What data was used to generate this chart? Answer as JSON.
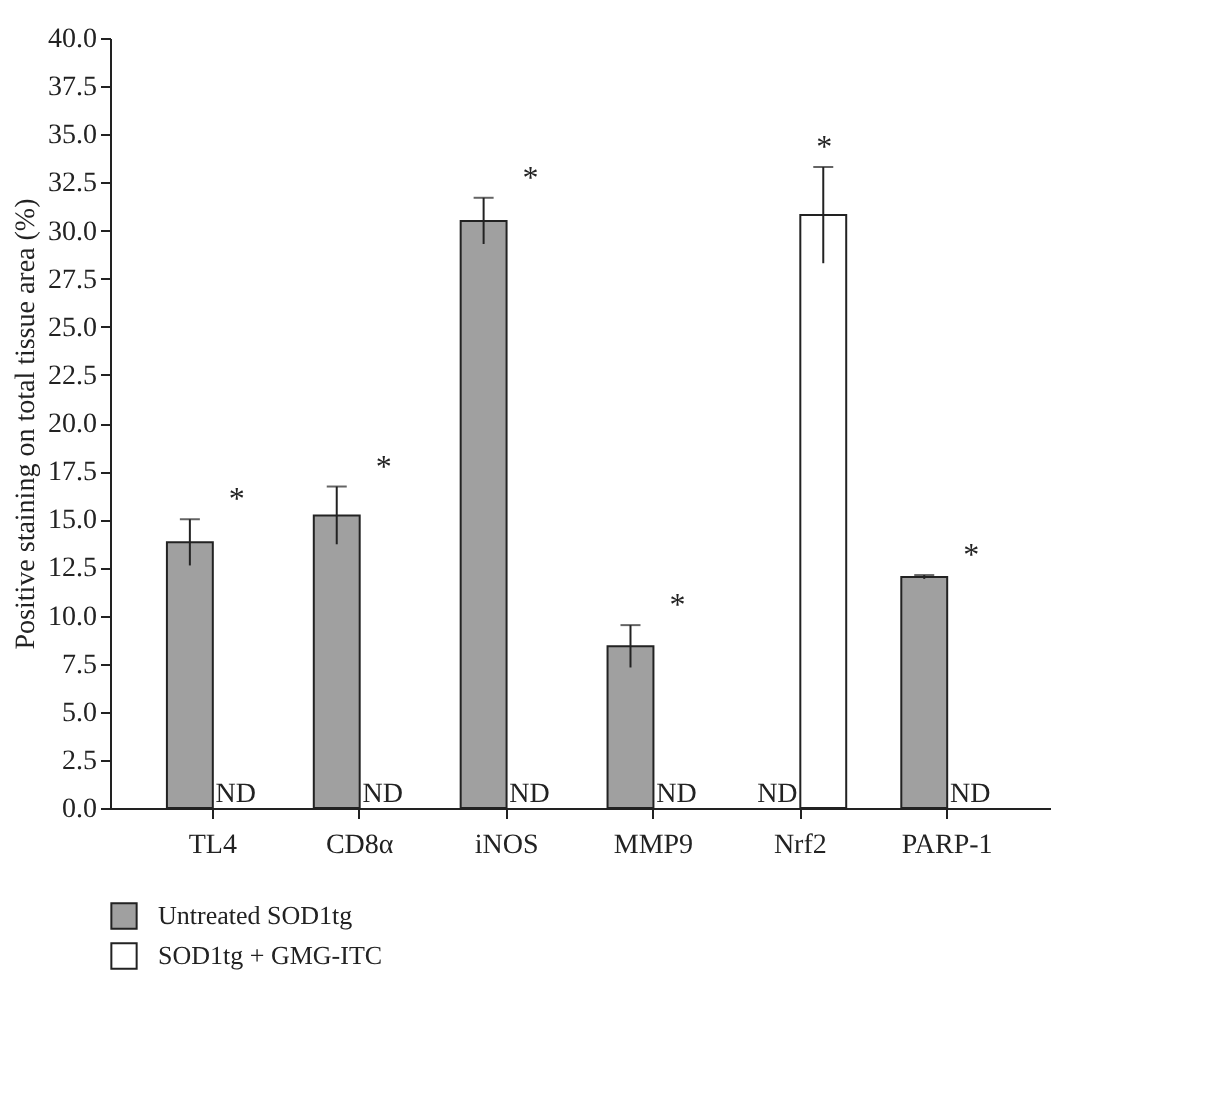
{
  "chart_data": {
    "type": "bar",
    "ylabel": "Positive staining on total tissue area (%)",
    "categories": [
      "TL4",
      "CD8α",
      "iNOS",
      "MMP9",
      "Nrf2",
      "PARP-1"
    ],
    "series": [
      {
        "name": "Untreated SOD1tg",
        "color": "#a0a0a0",
        "values": [
          13.8,
          15.2,
          30.5,
          8.4,
          null,
          12.0
        ],
        "errors": [
          1.2,
          1.5,
          1.2,
          1.1,
          null,
          0.1
        ]
      },
      {
        "name": "SOD1tg + GMG-ITC",
        "color": "#ffffff",
        "values": [
          null,
          null,
          null,
          null,
          30.8,
          null
        ],
        "errors": [
          null,
          null,
          null,
          null,
          2.5,
          null
        ]
      }
    ],
    "ylim": [
      0,
      40
    ],
    "yticks": [
      {
        "value": 0,
        "label": "0.0"
      },
      {
        "value": 2.5,
        "label": "2.5"
      },
      {
        "value": 5,
        "label": "5.0"
      },
      {
        "value": 7.5,
        "label": "7.5"
      },
      {
        "value": 10,
        "label": "10.0"
      },
      {
        "value": 12.5,
        "label": "12.5"
      },
      {
        "value": 15,
        "label": "15.0"
      },
      {
        "value": 17.5,
        "label": "17.5"
      },
      {
        "value": 20,
        "label": "20.0"
      },
      {
        "value": 22.5,
        "label": "22.5"
      },
      {
        "value": 25,
        "label": "25.0"
      },
      {
        "value": 27.5,
        "label": "27.5"
      },
      {
        "value": 30,
        "label": "30.0"
      },
      {
        "value": 32.5,
        "label": "32.5"
      },
      {
        "value": 35,
        "label": "35.0"
      },
      {
        "value": 37.5,
        "label": "37.5"
      },
      {
        "value": 40,
        "label": "40.0"
      }
    ],
    "grid": false,
    "legend": "bottom left",
    "annotations": [
      "*",
      "*",
      "*",
      "*",
      "*",
      "*",
      {
        "text": "ND",
        "x": "TL4",
        "y": 0
      },
      {
        "text": "ND",
        "x": "CD8α",
        "y": 0
      },
      {
        "text": "ND",
        "x": "iNOS",
        "y": 0
      },
      {
        "text": "ND",
        "x": "MMP9",
        "y": 0
      },
      {
        "text": "ND",
        "x": "Nrf2",
        "y": 0
      },
      {
        "text": "ND",
        "x": "PARP-1",
        "y": 0
      }
    ]
  }
}
